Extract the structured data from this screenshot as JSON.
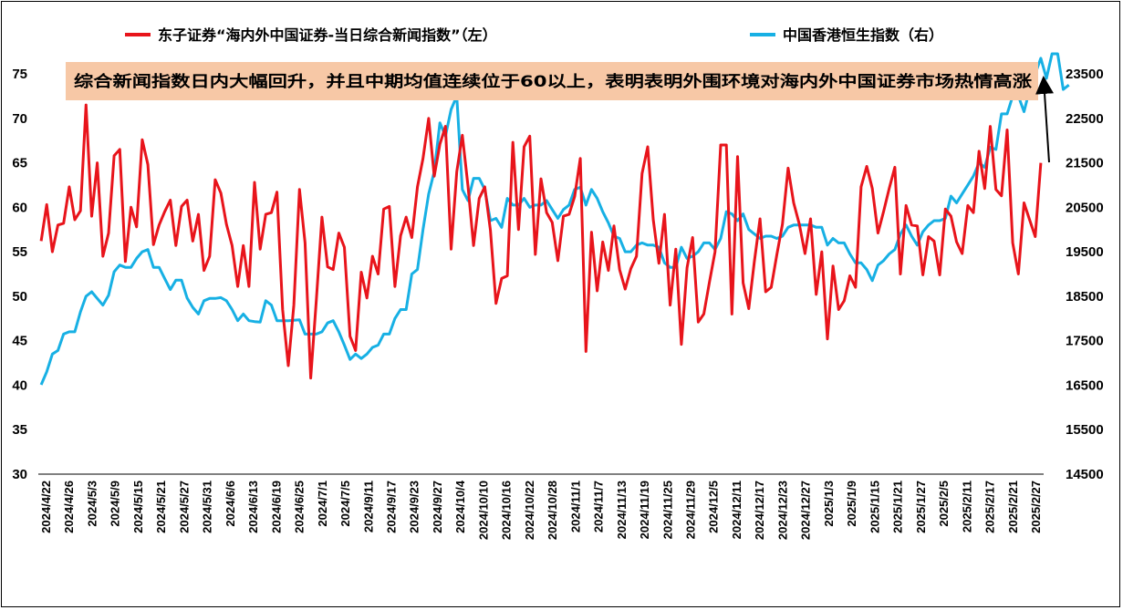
{
  "chart_data": {
    "type": "line",
    "series": [
      {
        "name": "东子证券“海内外中国证券-当日综合新闻指数”（左）",
        "axis": "left",
        "color": "#e8141b",
        "values": [
          56.2,
          60.3,
          55.0,
          58.0,
          58.2,
          62.3,
          58.6,
          59.6,
          71.5,
          59.0,
          65.0,
          54.5,
          57.1,
          65.8,
          66.5,
          53.9,
          60.0,
          57.8,
          67.6,
          64.8,
          55.8,
          58.0,
          59.5,
          60.8,
          55.7,
          60.1,
          60.8,
          56.2,
          59.2,
          52.9,
          54.5,
          63.1,
          61.6,
          58.1,
          55.7,
          51.1,
          55.7,
          51.1,
          62.8,
          55.3,
          59.2,
          59.4,
          61.7,
          48.5,
          42.2,
          49.0,
          62.0,
          56.0,
          40.8,
          49.5,
          58.9,
          53.3,
          53.0,
          57.1,
          55.5,
          45.5,
          43.9,
          52.7,
          49.8,
          54.5,
          52.5,
          59.8,
          60.1,
          51.1,
          56.8,
          58.9,
          56.6,
          62.3,
          65.5,
          70.0,
          63.5,
          67.1,
          69.1,
          55.3,
          64.0,
          68.1,
          62.4,
          55.7,
          61.0,
          62.3,
          57.4,
          49.2,
          52.0,
          52.3,
          67.3,
          57.5,
          66.8,
          68.0,
          54.7,
          63.2,
          59.4,
          58.3,
          54.0,
          59.0,
          59.2,
          61.2,
          65.5,
          43.8,
          57.2,
          50.6,
          56.1,
          52.9,
          57.9,
          53.0,
          50.8,
          53.1,
          54.5,
          63.8,
          66.8,
          58.6,
          53.7,
          59.2,
          49.0,
          55.3,
          44.6,
          53.2,
          56.6,
          47.1,
          48.0,
          51.6,
          55.0,
          67.0,
          67.0,
          48.0,
          65.7,
          51.5,
          48.6,
          53.9,
          58.7,
          50.5,
          51.0,
          54.7,
          58.1,
          64.4,
          60.5,
          58.1,
          54.8,
          58.7,
          50.2,
          55.0,
          45.2,
          53.4,
          48.5,
          49.5,
          52.3,
          51.0,
          62.3,
          64.6,
          62.1,
          57.1,
          59.5,
          62.1,
          64.5,
          52.5,
          60.2,
          58.0,
          57.9,
          52.4,
          56.7,
          56.2,
          52.4,
          59.8,
          59.0,
          56.1,
          54.8,
          60.2,
          59.4,
          66.3,
          62.1,
          69.1,
          62.0,
          61.3,
          68.7,
          56.0,
          52.5,
          60.5,
          58.6,
          56.7,
          65.0
        ]
      },
      {
        "name": "中国香港恒生指数（右）",
        "axis": "right",
        "color": "#17b0e4",
        "values": [
          16510,
          16800,
          17200,
          17280,
          17650,
          17700,
          17700,
          18150,
          18500,
          18600,
          18450,
          18300,
          18520,
          19050,
          19200,
          19150,
          19150,
          19350,
          19500,
          19550,
          19150,
          19150,
          18900,
          18650,
          18860,
          18860,
          18460,
          18250,
          18100,
          18400,
          18450,
          18450,
          18470,
          18400,
          18200,
          17950,
          18100,
          17950,
          17930,
          17920,
          18400,
          18300,
          17950,
          17950,
          17950,
          17960,
          17970,
          17650,
          17650,
          17650,
          17700,
          17900,
          17950,
          17700,
          17400,
          17080,
          17200,
          17100,
          17200,
          17350,
          17400,
          17650,
          17650,
          18000,
          18200,
          18200,
          19000,
          19100,
          20000,
          20800,
          21300,
          22400,
          22100,
          22700,
          23000,
          20900,
          20650,
          21150,
          21150,
          20900,
          20200,
          20250,
          20050,
          20700,
          20550,
          20550,
          20700,
          20500,
          20550,
          20550,
          20650,
          20450,
          20250,
          20450,
          20550,
          20900,
          20950,
          20550,
          20900,
          20700,
          20400,
          20150,
          19850,
          19800,
          19500,
          19500,
          19650,
          19700,
          19650,
          19650,
          19600,
          19250,
          19150,
          19150,
          19600,
          19350,
          19400,
          19500,
          19700,
          19700,
          19550,
          19800,
          20400,
          20350,
          20200,
          20350,
          20000,
          19900,
          19800,
          19850,
          19850,
          19800,
          19850,
          20050,
          20100,
          20100,
          20100,
          20100,
          20050,
          20050,
          19650,
          19800,
          19700,
          19700,
          19450,
          19250,
          19250,
          19100,
          18850,
          19200,
          19300,
          19450,
          19550,
          19900,
          20100,
          19850,
          19650,
          19950,
          20100,
          20200,
          20200,
          20250,
          20750,
          20600,
          20800,
          21000,
          21200,
          21500,
          21400,
          21850,
          21800,
          22600,
          22600,
          23000,
          23000,
          22650,
          23150,
          23500,
          23850,
          23400,
          23950,
          23950,
          23150,
          23250
        ]
      }
    ],
    "x_tick_labels": [
      "2024/4/22",
      "2024/4/26",
      "2024/5/3",
      "2024/5/9",
      "2024/5/15",
      "2024/5/21",
      "2024/5/27",
      "2024/5/31",
      "2024/6/6",
      "2024/6/13",
      "2024/6/19",
      "2024/6/25",
      "2024/7/1",
      "2024/7/5",
      "2024/9/11",
      "2024/9/17",
      "2024/9/23",
      "2024/9/27",
      "2024/10/4",
      "2024/10/10",
      "2024/10/16",
      "2024/10/22",
      "2024/10/28",
      "2024/11/1",
      "2024/11/7",
      "2024/11/13",
      "2024/11/19",
      "2024/11/25",
      "2024/11/29",
      "2024/12/5",
      "2024/12/11",
      "2024/12/17",
      "2024/12/23",
      "2024/12/27",
      "2025/1/3",
      "2025/1/9",
      "2025/1/15",
      "2025/1/21",
      "2025/1/27",
      "2025/2/5",
      "2025/2/11",
      "2025/2/17",
      "2025/2/21",
      "2025/2/27"
    ],
    "left_axis": {
      "min": 30,
      "max": 75,
      "ticks": [
        "30",
        "35",
        "40",
        "45",
        "50",
        "55",
        "60",
        "65",
        "70",
        "75"
      ]
    },
    "right_axis": {
      "min": 14500,
      "max": 23500,
      "ticks": [
        "14500",
        "15500",
        "16500",
        "17500",
        "18500",
        "19500",
        "20500",
        "21500",
        "22500",
        "23500"
      ]
    },
    "annotation": "综合新闻指数日内大幅回升，并且中期均值连续位于60以上，表明表明外围环境对海内外中国证券市场热情高涨",
    "annotation_bg": "#f7c8a6",
    "grid": false,
    "legend_position": "top"
  }
}
